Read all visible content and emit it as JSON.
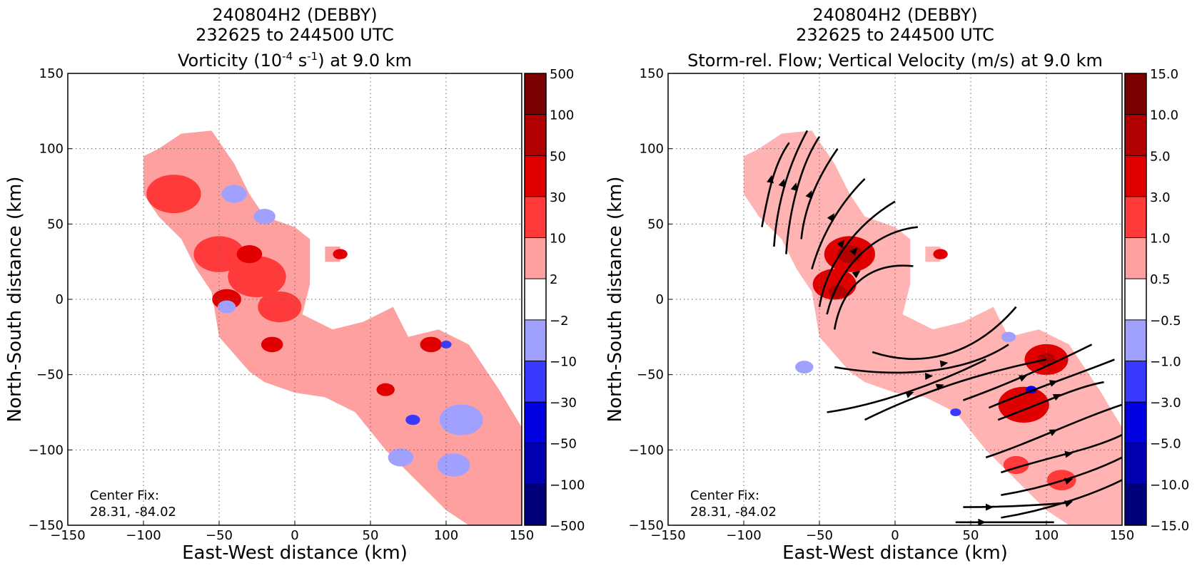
{
  "panels": [
    {
      "title_line1": "240804H2 (DEBBY)",
      "title_line2": "232625 to 244500 UTC",
      "title_line3_prefix": "Vorticity (10",
      "title_line3_sup1": "-4",
      "title_line3_mid": " s",
      "title_line3_sup2": "-1",
      "title_line3_suffix": ") at 9.0 km",
      "center_fix_label": "Center Fix:",
      "center_fix_value": "28.31, -84.02"
    },
    {
      "title_line1": "240804H2 (DEBBY)",
      "title_line2": "232625 to 244500 UTC",
      "title_line3": "Storm-rel. Flow; Vertical Velocity (m/s) at 9.0 km",
      "center_fix_label": "Center Fix:",
      "center_fix_value": "28.31, -84.02"
    }
  ],
  "chart_data": [
    {
      "type": "heatmap",
      "title": "240804H2 (DEBBY) 232625 to 244500 UTC Vorticity (10-4 s-1) at 9.0 km",
      "xlabel": "East-West distance (km)",
      "ylabel": "North-South distance (km)",
      "xlim": [
        -150,
        150
      ],
      "ylim": [
        -150,
        150
      ],
      "xticks": [
        "−150",
        "−100",
        "−50",
        "0",
        "50",
        "100",
        "150"
      ],
      "yticks": [
        "150",
        "100",
        "50",
        "0",
        "−50",
        "−100",
        "−150"
      ],
      "grid": true,
      "colorbar_labels": [
        "500",
        "100",
        "50",
        "30",
        "10",
        "2",
        "−2",
        "−10",
        "−30",
        "−50",
        "−100",
        "−500"
      ],
      "colorbar_colors": [
        "#7a0000",
        "#b00000",
        "#e00000",
        "#ff3a3a",
        "#ffa0a0",
        "#ffffff",
        "#a0a0ff",
        "#3a3aff",
        "#0000e0",
        "#0000b0",
        "#00007a"
      ],
      "rain_polygons_kmxy": [
        [
          [
            -100,
            95
          ],
          [
            -90,
            100
          ],
          [
            -75,
            110
          ],
          [
            -55,
            112
          ],
          [
            -40,
            90
          ],
          [
            -30,
            70
          ],
          [
            -20,
            55
          ],
          [
            0,
            48
          ],
          [
            10,
            40
          ],
          [
            10,
            10
          ],
          [
            5,
            -10
          ],
          [
            25,
            -20
          ],
          [
            45,
            -15
          ],
          [
            65,
            -5
          ],
          [
            75,
            -25
          ],
          [
            95,
            -20
          ],
          [
            115,
            -30
          ],
          [
            135,
            -60
          ],
          [
            150,
            -85
          ],
          [
            150,
            -150
          ],
          [
            115,
            -150
          ],
          [
            100,
            -140
          ],
          [
            80,
            -120
          ],
          [
            60,
            -100
          ],
          [
            40,
            -75
          ],
          [
            20,
            -65
          ],
          [
            0,
            -62
          ],
          [
            -20,
            -55
          ],
          [
            -30,
            -48
          ],
          [
            -50,
            -25
          ],
          [
            -55,
            5
          ],
          [
            -65,
            20
          ],
          [
            -75,
            40
          ],
          [
            -90,
            55
          ],
          [
            -100,
            70
          ]
        ],
        [
          [
            20,
            35
          ],
          [
            30,
            35
          ],
          [
            30,
            25
          ],
          [
            20,
            25
          ]
        ]
      ],
      "cells": [
        {
          "x": -80,
          "y": 70,
          "r": 15,
          "level": 2
        },
        {
          "x": -50,
          "y": 30,
          "r": 14,
          "level": 2
        },
        {
          "x": -25,
          "y": 15,
          "r": 16,
          "level": 2
        },
        {
          "x": -10,
          "y": -5,
          "r": 12,
          "level": 2
        },
        {
          "x": -45,
          "y": 0,
          "r": 8,
          "level": 3
        },
        {
          "x": -30,
          "y": 30,
          "r": 7,
          "level": 3
        },
        {
          "x": -15,
          "y": -30,
          "r": 6,
          "level": 3
        },
        {
          "x": 30,
          "y": 30,
          "r": 4,
          "level": 3
        },
        {
          "x": 90,
          "y": -30,
          "r": 6,
          "level": 3
        },
        {
          "x": 60,
          "y": -60,
          "r": 5,
          "level": 3
        },
        {
          "x": -40,
          "y": 70,
          "r": 7,
          "level": -1
        },
        {
          "x": -20,
          "y": 55,
          "r": 6,
          "level": -1
        },
        {
          "x": -45,
          "y": -5,
          "r": 5,
          "level": -1
        },
        {
          "x": 110,
          "y": -80,
          "r": 12,
          "level": -1
        },
        {
          "x": 105,
          "y": -110,
          "r": 9,
          "level": -1
        },
        {
          "x": 70,
          "y": -105,
          "r": 7,
          "level": -1
        },
        {
          "x": 78,
          "y": -80,
          "r": 4,
          "level": -2
        },
        {
          "x": 100,
          "y": -30,
          "r": 3,
          "level": -2
        }
      ]
    },
    {
      "type": "heatmap",
      "title": "240804H2 (DEBBY) 232625 to 244500 UTC Storm-rel. Flow; Vertical Velocity (m/s) at 9.0 km",
      "xlabel": "East-West distance (km)",
      "ylabel": "North-South distance (km)",
      "xlim": [
        -150,
        150
      ],
      "ylim": [
        -150,
        150
      ],
      "xticks": [
        "−150",
        "−100",
        "−50",
        "0",
        "50",
        "100",
        "150"
      ],
      "yticks": [
        "150",
        "100",
        "50",
        "0",
        "−50",
        "−100",
        "−150"
      ],
      "grid": true,
      "colorbar_labels": [
        "15.0",
        "10.0",
        "5.0",
        "3.0",
        "1.0",
        "0.5",
        "−0.5",
        "−1.0",
        "−3.0",
        "−5.0",
        "−10.0",
        "−15.0"
      ],
      "colorbar_colors": [
        "#7a0000",
        "#b00000",
        "#e00000",
        "#ff3a3a",
        "#ffa0a0",
        "#ffffff",
        "#a0a0ff",
        "#3a3aff",
        "#0000e0",
        "#0000b0",
        "#00007a"
      ],
      "rain_polygons_kmxy": [
        [
          [
            -100,
            95
          ],
          [
            -90,
            100
          ],
          [
            -75,
            110
          ],
          [
            -55,
            112
          ],
          [
            -40,
            90
          ],
          [
            -30,
            70
          ],
          [
            -20,
            55
          ],
          [
            0,
            48
          ],
          [
            10,
            40
          ],
          [
            10,
            10
          ],
          [
            5,
            -10
          ],
          [
            25,
            -20
          ],
          [
            45,
            -15
          ],
          [
            65,
            -5
          ],
          [
            75,
            -25
          ],
          [
            95,
            -20
          ],
          [
            115,
            -30
          ],
          [
            135,
            -60
          ],
          [
            150,
            -85
          ],
          [
            150,
            -150
          ],
          [
            115,
            -150
          ],
          [
            100,
            -140
          ],
          [
            80,
            -120
          ],
          [
            60,
            -100
          ],
          [
            40,
            -75
          ],
          [
            20,
            -65
          ],
          [
            0,
            -62
          ],
          [
            -20,
            -55
          ],
          [
            -30,
            -48
          ],
          [
            -50,
            -25
          ],
          [
            -55,
            5
          ],
          [
            -65,
            20
          ],
          [
            -75,
            40
          ],
          [
            -90,
            55
          ],
          [
            -100,
            70
          ]
        ],
        [
          [
            20,
            35
          ],
          [
            30,
            35
          ],
          [
            30,
            25
          ],
          [
            20,
            25
          ]
        ]
      ],
      "cells": [
        {
          "x": -30,
          "y": 30,
          "r": 14,
          "level": 3
        },
        {
          "x": -40,
          "y": 10,
          "r": 12,
          "level": 3
        },
        {
          "x": -30,
          "y": 30,
          "r": 7,
          "level": 4
        },
        {
          "x": -38,
          "y": 5,
          "r": 5,
          "level": 4
        },
        {
          "x": 100,
          "y": -40,
          "r": 12,
          "level": 3
        },
        {
          "x": 85,
          "y": -70,
          "r": 14,
          "level": 3
        },
        {
          "x": 100,
          "y": -40,
          "r": 5,
          "level": 4
        },
        {
          "x": 30,
          "y": 30,
          "r": 4,
          "level": 3
        },
        {
          "x": 110,
          "y": -120,
          "r": 8,
          "level": 2
        },
        {
          "x": 80,
          "y": -110,
          "r": 7,
          "level": 2
        },
        {
          "x": -60,
          "y": -45,
          "r": 5,
          "level": -1
        },
        {
          "x": 75,
          "y": -25,
          "r": 4,
          "level": -1
        },
        {
          "x": 40,
          "y": -75,
          "r": 3,
          "level": -2
        },
        {
          "x": 90,
          "y": -60,
          "r": 3,
          "level": -3
        }
      ],
      "streamlines_kmxy": [
        [
          [
            -88,
            48
          ],
          [
            -84,
            70
          ],
          [
            -80,
            90
          ],
          [
            -70,
            104
          ]
        ],
        [
          [
            -80,
            35
          ],
          [
            -78,
            65
          ],
          [
            -70,
            90
          ],
          [
            -58,
            112
          ]
        ],
        [
          [
            -72,
            30
          ],
          [
            -70,
            60
          ],
          [
            -62,
            90
          ],
          [
            -50,
            108
          ]
        ],
        [
          [
            -62,
            40
          ],
          [
            -60,
            60
          ],
          [
            -52,
            80
          ],
          [
            -38,
            100
          ]
        ],
        [
          [
            -55,
            20
          ],
          [
            -48,
            45
          ],
          [
            -35,
            65
          ],
          [
            -20,
            80
          ]
        ],
        [
          [
            -50,
            -5
          ],
          [
            -45,
            25
          ],
          [
            -25,
            50
          ],
          [
            0,
            65
          ]
        ],
        [
          [
            -45,
            -10
          ],
          [
            -38,
            20
          ],
          [
            -15,
            45
          ],
          [
            15,
            48
          ]
        ],
        [
          [
            -40,
            -20
          ],
          [
            -35,
            10
          ],
          [
            -15,
            25
          ],
          [
            12,
            22
          ]
        ],
        [
          [
            -15,
            -35
          ],
          [
            15,
            -45
          ],
          [
            50,
            -40
          ],
          [
            80,
            -5
          ]
        ],
        [
          [
            -40,
            -45
          ],
          [
            0,
            -52
          ],
          [
            45,
            -50
          ],
          [
            75,
            -30
          ]
        ],
        [
          [
            -45,
            -75
          ],
          [
            -10,
            -70
          ],
          [
            30,
            -55
          ],
          [
            60,
            -40
          ]
        ],
        [
          [
            -20,
            -80
          ],
          [
            10,
            -65
          ],
          [
            50,
            -50
          ],
          [
            100,
            -40
          ]
        ],
        [
          [
            45,
            -67
          ],
          [
            70,
            -58
          ],
          [
            100,
            -45
          ],
          [
            130,
            -30
          ]
        ],
        [
          [
            62,
            -72
          ],
          [
            90,
            -60
          ],
          [
            120,
            -50
          ],
          [
            145,
            -40
          ]
        ],
        [
          [
            68,
            -80
          ],
          [
            95,
            -70
          ],
          [
            120,
            -58
          ],
          [
            138,
            -55
          ]
        ],
        [
          [
            60,
            -105
          ],
          [
            90,
            -95
          ],
          [
            120,
            -80
          ],
          [
            150,
            -70
          ]
        ],
        [
          [
            70,
            -115
          ],
          [
            100,
            -105
          ],
          [
            130,
            -100
          ],
          [
            150,
            -90
          ]
        ],
        [
          [
            70,
            -130
          ],
          [
            100,
            -125
          ],
          [
            130,
            -115
          ],
          [
            150,
            -105
          ]
        ],
        [
          [
            70,
            -145
          ],
          [
            100,
            -140
          ],
          [
            130,
            -130
          ],
          [
            150,
            -120
          ]
        ],
        [
          [
            45,
            -138
          ],
          [
            80,
            -138
          ],
          [
            115,
            -135
          ]
        ],
        [
          [
            40,
            -148
          ],
          [
            75,
            -148
          ],
          [
            105,
            -148
          ]
        ]
      ]
    }
  ]
}
